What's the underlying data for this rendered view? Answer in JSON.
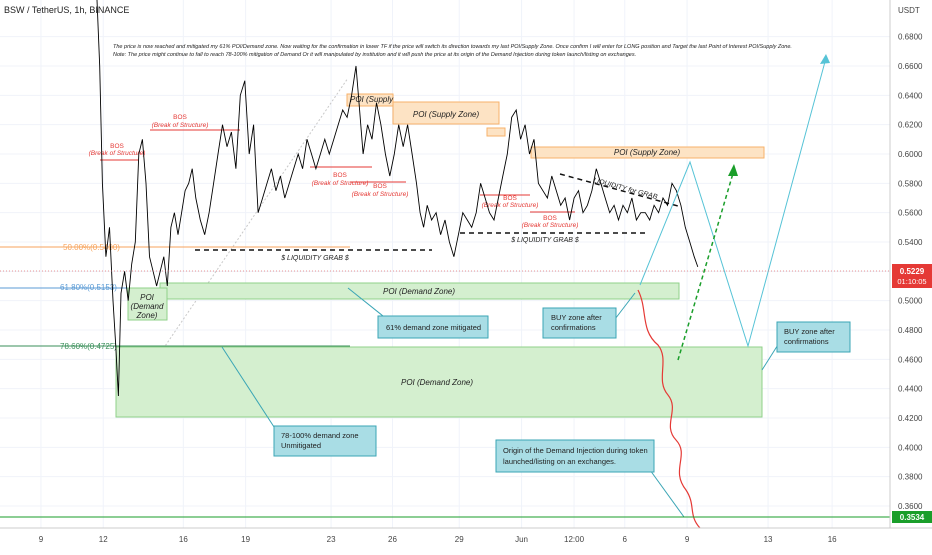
{
  "header": {
    "symbol_line": "BSW / TetherUS, 1h, BINANCE",
    "currency": "USDT",
    "note_1": "The price is now reached and mitigated my 61% POI/Demand zone. Now waiting for the confirmation in lower TF if the price will switch its direction towards my last POI/Supply Zone. Once confirm I will enter for LONG position and Target the last Point of Interest POI/Supply Zone.",
    "note_2": "Note: The price might continue to fall to reach 78-100% mitigation of Demand Or it will manipulated by institution and it will push the price at its origin of the Demand Injection during token launch/listing on exchanges."
  },
  "price_tags": {
    "last_price": "0.5229",
    "countdown": "01:10:05",
    "low_price": "0.3534"
  },
  "chart_data": {
    "type": "line",
    "ylim": [
      0.345,
      0.705
    ],
    "x_range": [
      0,
      100
    ],
    "y_ticks": [
      "0.6800",
      "0.6600",
      "0.6400",
      "0.6200",
      "0.6000",
      "0.5800",
      "0.5600",
      "0.5400",
      "0.5200",
      "0.5000",
      "0.4800",
      "0.4600",
      "0.4400",
      "0.4200",
      "0.4000",
      "0.3800",
      "0.3600"
    ],
    "y_tick_values": [
      0.68,
      0.66,
      0.64,
      0.62,
      0.6,
      0.58,
      0.56,
      0.54,
      0.52,
      0.5,
      0.48,
      0.46,
      0.44,
      0.42,
      0.4,
      0.38,
      0.36
    ],
    "x_ticks": [
      {
        "label": "9",
        "x": 4.6
      },
      {
        "label": "12",
        "x": 11.6
      },
      {
        "label": "16",
        "x": 20.6
      },
      {
        "label": "19",
        "x": 27.6
      },
      {
        "label": "23",
        "x": 37.2
      },
      {
        "label": "26",
        "x": 44.1
      },
      {
        "label": "29",
        "x": 51.6
      },
      {
        "label": "Jun",
        "x": 58.6
      },
      {
        "label": "12:00",
        "x": 64.5
      },
      {
        "label": "6",
        "x": 70.2
      },
      {
        "label": "9",
        "x": 77.2
      },
      {
        "label": "13",
        "x": 86.3
      },
      {
        "label": "16",
        "x": 93.5
      }
    ],
    "series": [
      {
        "color": "#000000",
        "points": [
          [
            10.9,
            0.705
          ],
          [
            11.2,
            0.66
          ],
          [
            11.5,
            0.58
          ],
          [
            11.9,
            0.53
          ],
          [
            12.3,
            0.55
          ],
          [
            12.7,
            0.5
          ],
          [
            13.0,
            0.47
          ],
          [
            13.3,
            0.435
          ],
          [
            13.6,
            0.505
          ],
          [
            14.0,
            0.52
          ],
          [
            14.4,
            0.5
          ],
          [
            14.8,
            0.525
          ],
          [
            15.2,
            0.54
          ],
          [
            15.6,
            0.6
          ],
          [
            16.0,
            0.61
          ],
          [
            16.4,
            0.58
          ],
          [
            16.8,
            0.53
          ],
          [
            17.2,
            0.52
          ],
          [
            17.6,
            0.51
          ],
          [
            18.0,
            0.52
          ],
          [
            18.4,
            0.53
          ],
          [
            18.8,
            0.51
          ],
          [
            19.2,
            0.55
          ],
          [
            19.6,
            0.56
          ],
          [
            20.0,
            0.545
          ],
          [
            20.4,
            0.56
          ],
          [
            20.8,
            0.575
          ],
          [
            21.2,
            0.58
          ],
          [
            21.6,
            0.59
          ],
          [
            22.0,
            0.57
          ],
          [
            22.5,
            0.555
          ],
          [
            23.0,
            0.545
          ],
          [
            23.5,
            0.56
          ],
          [
            24.0,
            0.58
          ],
          [
            24.5,
            0.6
          ],
          [
            25.0,
            0.62
          ],
          [
            25.5,
            0.605
          ],
          [
            26.0,
            0.615
          ],
          [
            26.5,
            0.59
          ],
          [
            27.0,
            0.64
          ],
          [
            27.5,
            0.65
          ],
          [
            28.0,
            0.6
          ],
          [
            28.5,
            0.62
          ],
          [
            29.0,
            0.56
          ],
          [
            29.5,
            0.57
          ],
          [
            30.0,
            0.58
          ],
          [
            30.5,
            0.59
          ],
          [
            31.0,
            0.575
          ],
          [
            31.5,
            0.585
          ],
          [
            32.0,
            0.57
          ],
          [
            32.5,
            0.58
          ],
          [
            33.0,
            0.59
          ],
          [
            33.5,
            0.6
          ],
          [
            34.0,
            0.59
          ],
          [
            34.5,
            0.61
          ],
          [
            35.0,
            0.6
          ],
          [
            35.5,
            0.59
          ],
          [
            36.0,
            0.6
          ],
          [
            36.5,
            0.61
          ],
          [
            37.0,
            0.6
          ],
          [
            37.5,
            0.61
          ],
          [
            38.0,
            0.62
          ],
          [
            38.5,
            0.63
          ],
          [
            39.0,
            0.625
          ],
          [
            39.5,
            0.64
          ],
          [
            40.0,
            0.66
          ],
          [
            40.4,
            0.63
          ],
          [
            40.8,
            0.6
          ],
          [
            41.3,
            0.62
          ],
          [
            41.8,
            0.61
          ],
          [
            42.3,
            0.635
          ],
          [
            42.8,
            0.62
          ],
          [
            43.3,
            0.6
          ],
          [
            43.8,
            0.585
          ],
          [
            44.3,
            0.6
          ],
          [
            44.8,
            0.62
          ],
          [
            45.3,
            0.605
          ],
          [
            45.8,
            0.62
          ],
          [
            46.3,
            0.6
          ],
          [
            46.8,
            0.58
          ],
          [
            47.2,
            0.56
          ],
          [
            47.6,
            0.55
          ],
          [
            48.0,
            0.565
          ],
          [
            48.5,
            0.555
          ],
          [
            49.0,
            0.56
          ],
          [
            49.5,
            0.545
          ],
          [
            50.0,
            0.555
          ],
          [
            50.5,
            0.54
          ],
          [
            51.0,
            0.53
          ],
          [
            51.5,
            0.545
          ],
          [
            52.0,
            0.56
          ],
          [
            52.5,
            0.555
          ],
          [
            53.0,
            0.55
          ],
          [
            53.5,
            0.56
          ],
          [
            54.0,
            0.58
          ],
          [
            54.5,
            0.57
          ],
          [
            55.0,
            0.56
          ],
          [
            55.5,
            0.555
          ],
          [
            56.0,
            0.57
          ],
          [
            56.5,
            0.585
          ],
          [
            57.0,
            0.6
          ],
          [
            57.5,
            0.625
          ],
          [
            58.0,
            0.63
          ],
          [
            58.5,
            0.61
          ],
          [
            59.0,
            0.62
          ],
          [
            59.5,
            0.6
          ],
          [
            60.0,
            0.61
          ],
          [
            60.5,
            0.58
          ],
          [
            61.0,
            0.575
          ],
          [
            61.5,
            0.57
          ],
          [
            62.0,
            0.585
          ],
          [
            62.5,
            0.575
          ],
          [
            63.0,
            0.565
          ],
          [
            63.5,
            0.57
          ],
          [
            64.0,
            0.555
          ],
          [
            64.5,
            0.57
          ],
          [
            65.0,
            0.575
          ],
          [
            65.5,
            0.56
          ],
          [
            66.0,
            0.565
          ],
          [
            66.5,
            0.575
          ],
          [
            67.0,
            0.59
          ],
          [
            67.5,
            0.58
          ],
          [
            68.0,
            0.57
          ],
          [
            68.5,
            0.56
          ],
          [
            69.0,
            0.565
          ],
          [
            69.5,
            0.555
          ],
          [
            70.0,
            0.565
          ],
          [
            70.5,
            0.56
          ],
          [
            71.0,
            0.57
          ],
          [
            71.5,
            0.555
          ],
          [
            72.0,
            0.56
          ],
          [
            72.5,
            0.56
          ],
          [
            73.0,
            0.555
          ],
          [
            73.5,
            0.565
          ],
          [
            74.0,
            0.56
          ],
          [
            74.5,
            0.57
          ],
          [
            75.0,
            0.565
          ],
          [
            75.5,
            0.58
          ],
          [
            76.0,
            0.575
          ],
          [
            76.5,
            0.565
          ],
          [
            77.0,
            0.55
          ],
          [
            77.5,
            0.54
          ],
          [
            78.0,
            0.53
          ],
          [
            78.4,
            0.523
          ]
        ]
      }
    ]
  },
  "levels": [
    {
      "label": "50.00%(0.5400)",
      "color": "#f7a35c"
    },
    {
      "label": "61.80%(0.5153)",
      "color": "#5b9bd5"
    },
    {
      "label": "78.60%(0.4725)",
      "color": "#3a8f5a"
    }
  ],
  "zones": [
    {
      "label": "POI (Supply",
      "kind": "supply"
    },
    {
      "label": "POI (Supply Zone)",
      "kind": "supply"
    },
    {
      "label": "POI (Supply Zone)",
      "kind": "supply"
    },
    {
      "label": "POI (Demand Zone)",
      "kind": "demand"
    },
    {
      "label": "POI (Demand Zone)",
      "kind": "demand"
    }
  ],
  "poi_small": {
    "line1": "POI",
    "line2": "(Demand",
    "line3": "Zone)"
  },
  "bos_labels": [
    {
      "title": "BOS",
      "subtitle": "(Break of Structure)"
    },
    {
      "title": "BOS",
      "subtitle": "(Break of Structure)"
    },
    {
      "title": "BOS",
      "subtitle": "(Break of Structure)"
    },
    {
      "title": "BOS",
      "subtitle": "(Break of Structure)"
    },
    {
      "title": "BOS",
      "subtitle": "(Break of Structure)"
    },
    {
      "title": "BOS",
      "subtitle": "(Break of Structure)"
    }
  ],
  "liquidity_labels": [
    "$ LIQUIDITY GRAB $",
    "$ LIQUIDITY GRAB $",
    "LIQUIDITY for GRAB"
  ],
  "callouts": [
    {
      "line1": "61% demand zone mitigated",
      "line2": ""
    },
    {
      "line1": "BUY zone after",
      "line2": "confirmations"
    },
    {
      "line1": "BUY zone after",
      "line2": "confirmations"
    },
    {
      "line1": "78-100% demand zone",
      "line2": "Unmitigated"
    },
    {
      "line1": "Origin of the Demand Injection during token",
      "line2": "launched/listing on an exchanges."
    }
  ],
  "colors": {
    "supply_fill": "#fde3c4",
    "supply_border": "#f7b26a",
    "demand_fill": "#d4efcf",
    "demand_border": "#8fd18a",
    "callout_fill": "#a9dde5",
    "callout_border": "#3aa5b5",
    "bos_red": "#e53935",
    "path_green": "#1a9e2a",
    "path_cyan": "#56c3d6",
    "path_red": "#e53935",
    "price_tag": "#e53935",
    "low_tag": "#1a9e2a"
  }
}
